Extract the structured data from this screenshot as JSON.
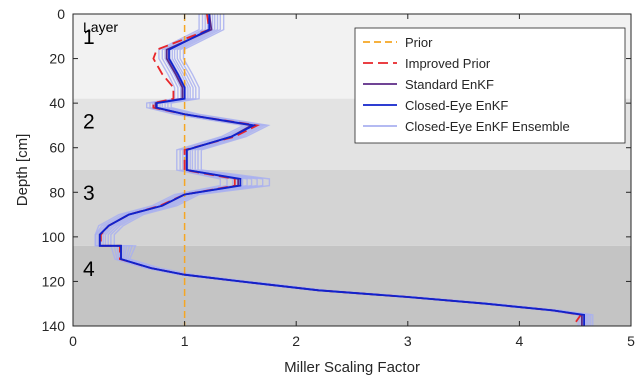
{
  "chart_data": {
    "type": "line",
    "xlabel": "Miller Scaling Factor",
    "ylabel": "Depth [cm]",
    "xlim": [
      0,
      5
    ],
    "ylim": [
      140,
      0
    ],
    "y_axis_reversed": true,
    "xticks": [
      0,
      1,
      2,
      3,
      4,
      5
    ],
    "yticks": [
      0,
      20,
      40,
      60,
      80,
      100,
      120,
      140
    ],
    "grid": false,
    "legend_position": "top-right",
    "layer_header": "Layer",
    "layers": [
      {
        "label": "1",
        "top": 0,
        "bottom": 38,
        "color": "#f2f2f2"
      },
      {
        "label": "2",
        "top": 38,
        "bottom": 70,
        "color": "#e3e3e3"
      },
      {
        "label": "3",
        "top": 70,
        "bottom": 104,
        "color": "#d4d4d4"
      },
      {
        "label": "4",
        "top": 104,
        "bottom": 140,
        "color": "#c4c4c4"
      }
    ],
    "series": [
      {
        "name": "Prior",
        "color": "#f5a623",
        "dash": "dashed",
        "points": [
          [
            1.0,
            0
          ],
          [
            1.0,
            140
          ]
        ]
      },
      {
        "name": "Improved Prior",
        "color": "#e8262a",
        "dash": "dashed",
        "points": [
          [
            1.2,
            0
          ],
          [
            1.22,
            7
          ],
          [
            0.75,
            16
          ],
          [
            0.72,
            20
          ],
          [
            0.8,
            27
          ],
          [
            0.9,
            33
          ],
          [
            0.9,
            38
          ],
          [
            0.72,
            40
          ],
          [
            0.72,
            42
          ],
          [
            1.0,
            45
          ],
          [
            1.65,
            50
          ],
          [
            1.45,
            55
          ],
          [
            1.0,
            61
          ],
          [
            1.0,
            70
          ],
          [
            1.0,
            70
          ],
          [
            1.45,
            74
          ],
          [
            1.45,
            77
          ],
          [
            1.0,
            81
          ],
          [
            0.78,
            86
          ],
          [
            0.5,
            90
          ],
          [
            0.32,
            95
          ],
          [
            0.25,
            99
          ],
          [
            0.25,
            104
          ],
          [
            0.42,
            104
          ],
          [
            0.42,
            110
          ],
          [
            0.7,
            114
          ],
          [
            1.0,
            117
          ],
          [
            1.5,
            120
          ],
          [
            2.2,
            124
          ],
          [
            3.0,
            127
          ],
          [
            3.7,
            130
          ],
          [
            4.3,
            133
          ],
          [
            4.55,
            135
          ],
          [
            4.48,
            140
          ]
        ]
      },
      {
        "name": "Standard EnKF",
        "color": "#5b2a86",
        "dash": "solid",
        "points": [
          [
            1.22,
            0
          ],
          [
            1.24,
            7
          ],
          [
            0.84,
            16
          ],
          [
            0.84,
            20
          ],
          [
            0.92,
            27
          ],
          [
            0.98,
            33
          ],
          [
            0.98,
            38
          ],
          [
            0.74,
            40
          ],
          [
            0.74,
            42
          ],
          [
            1.0,
            45
          ],
          [
            1.6,
            50
          ],
          [
            1.42,
            55
          ],
          [
            1.02,
            61
          ],
          [
            1.02,
            70
          ],
          [
            1.48,
            74
          ],
          [
            1.48,
            77
          ],
          [
            1.0,
            81
          ],
          [
            0.8,
            86
          ],
          [
            0.5,
            90
          ],
          [
            0.32,
            95
          ],
          [
            0.24,
            99
          ],
          [
            0.24,
            104
          ],
          [
            0.43,
            104
          ],
          [
            0.43,
            110
          ],
          [
            0.7,
            114
          ],
          [
            1.0,
            117
          ],
          [
            1.5,
            120
          ],
          [
            2.2,
            124
          ],
          [
            3.0,
            127
          ],
          [
            3.7,
            130
          ],
          [
            4.3,
            133
          ],
          [
            4.56,
            135
          ],
          [
            4.56,
            140
          ]
        ]
      },
      {
        "name": "Closed-Eye EnKF",
        "color": "#1022cc",
        "dash": "solid",
        "points": [
          [
            1.22,
            0
          ],
          [
            1.22,
            7
          ],
          [
            0.86,
            16
          ],
          [
            0.86,
            20
          ],
          [
            0.94,
            27
          ],
          [
            1.0,
            33
          ],
          [
            1.0,
            38
          ],
          [
            0.75,
            40
          ],
          [
            0.75,
            42
          ],
          [
            1.0,
            45
          ],
          [
            1.62,
            50
          ],
          [
            1.42,
            55
          ],
          [
            1.02,
            61
          ],
          [
            1.02,
            70
          ],
          [
            1.5,
            74
          ],
          [
            1.5,
            77
          ],
          [
            1.0,
            81
          ],
          [
            0.8,
            86
          ],
          [
            0.5,
            90
          ],
          [
            0.32,
            95
          ],
          [
            0.24,
            99
          ],
          [
            0.24,
            104
          ],
          [
            0.43,
            104
          ],
          [
            0.43,
            110
          ],
          [
            0.7,
            114
          ],
          [
            1.0,
            117
          ],
          [
            1.5,
            120
          ],
          [
            2.2,
            124
          ],
          [
            3.0,
            127
          ],
          [
            3.7,
            130
          ],
          [
            4.3,
            133
          ],
          [
            4.58,
            135
          ],
          [
            4.58,
            140
          ]
        ]
      },
      {
        "name": "Closed-Eye EnKF Ensemble",
        "color": "#a9b0f0",
        "dash": "solid",
        "points": []
      }
    ]
  }
}
